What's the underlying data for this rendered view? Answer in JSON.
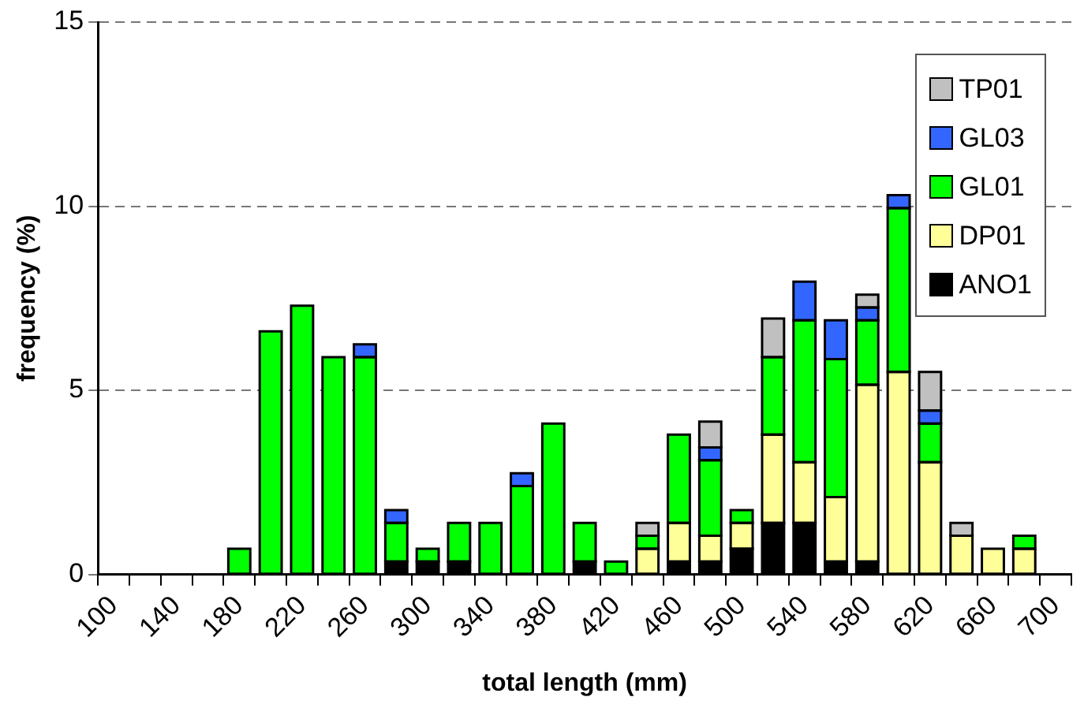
{
  "chart_data": {
    "type": "bar",
    "stacked": true,
    "xlabel": "total length (mm)",
    "ylabel": "frequency (%)",
    "categories": [
      "100",
      null,
      "140",
      null,
      "180",
      null,
      "220",
      null,
      "260",
      null,
      "300",
      null,
      "340",
      null,
      "380",
      null,
      "420",
      null,
      "460",
      null,
      "500",
      null,
      "540",
      null,
      "580",
      null,
      "620",
      null,
      "660",
      null,
      "700"
    ],
    "ylim": [
      0,
      15
    ],
    "yticks": [
      0,
      5,
      10,
      15
    ],
    "grid": "y",
    "legend": "top right",
    "series": [
      {
        "name": "ANO1",
        "color": "#000000",
        "values": [
          0,
          0,
          0,
          0,
          0,
          0,
          0,
          0,
          0,
          0.35,
          0.35,
          0.35,
          0,
          0,
          0,
          0.35,
          0,
          0,
          0.35,
          0.35,
          0.7,
          1.4,
          1.4,
          0.35,
          0.35,
          0,
          0,
          0,
          0,
          0,
          0
        ]
      },
      {
        "name": "DP01",
        "color": "#ffff99",
        "values": [
          0,
          0,
          0,
          0,
          0,
          0,
          0,
          0,
          0,
          0,
          0,
          0,
          0,
          0,
          0,
          0,
          0,
          0.7,
          1.05,
          0.7,
          0.7,
          2.4,
          1.65,
          1.75,
          4.8,
          5.5,
          3.05,
          1.05,
          0.7,
          0.7,
          0
        ]
      },
      {
        "name": "GL01",
        "color": "#00ff00",
        "values": [
          0,
          0,
          0,
          0,
          0.7,
          6.6,
          7.3,
          5.9,
          5.9,
          1.05,
          0.35,
          1.05,
          1.4,
          2.4,
          4.1,
          1.05,
          0.35,
          0.35,
          2.4,
          2.05,
          0.35,
          2.1,
          3.85,
          3.75,
          1.75,
          4.45,
          1.05,
          0,
          0,
          0.35,
          0
        ]
      },
      {
        "name": "GL03",
        "color": "#3366ff",
        "values": [
          0,
          0,
          0,
          0,
          0,
          0,
          0,
          0,
          0.35,
          0.35,
          0,
          0,
          0,
          0.35,
          0,
          0,
          0,
          0,
          0,
          0.35,
          0,
          0,
          1.05,
          1.05,
          0.35,
          0.35,
          0.35,
          0,
          0,
          0,
          0
        ]
      },
      {
        "name": "TP01",
        "color": "#c0c0c0",
        "values": [
          0,
          0,
          0,
          0,
          0,
          0,
          0,
          0,
          0,
          0,
          0,
          0,
          0,
          0,
          0,
          0,
          0,
          0.35,
          0,
          0.7,
          0,
          1.05,
          0,
          0,
          0.35,
          0,
          1.05,
          0.35,
          0,
          0,
          0
        ]
      }
    ]
  }
}
